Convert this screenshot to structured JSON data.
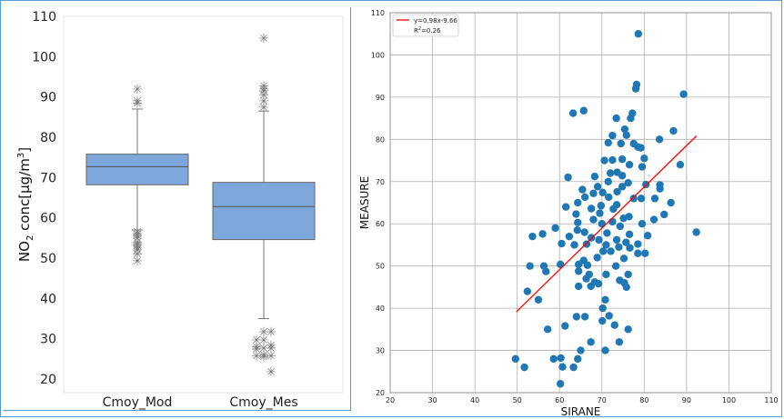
{
  "chart_data": [
    {
      "type": "box",
      "ylabel_main": "NO",
      "ylabel_sub": "2",
      "ylabel_rest": " conc[µg/m",
      "ylabel_sup": "3",
      "ylabel_end": "]",
      "ylim": [
        18,
        111
      ],
      "yticks": [
        20,
        30,
        40,
        50,
        60,
        70,
        80,
        90,
        100,
        110
      ],
      "grid": false,
      "box_color": "#7ea7dc",
      "categories": [
        "Cmoy_Mod",
        "Cmoy_Mes"
      ],
      "boxes": [
        {
          "name": "Cmoy_Mod",
          "whisker_low": 57,
          "q1": 68.2,
          "median": 72.7,
          "q3": 75.8,
          "whisker_high": 87,
          "outliers": [
            92,
            89,
            88.5,
            56.5,
            56,
            55.5,
            55,
            54,
            53.5,
            53,
            52.5,
            52,
            51,
            49.3
          ]
        },
        {
          "name": "Cmoy_Mes",
          "whisker_low": 35,
          "q1": 54.6,
          "median": 62.8,
          "q3": 68.8,
          "whisker_high": 86.5,
          "outliers": [
            104.6,
            92.7,
            92,
            91.5,
            90.5,
            89,
            87.5,
            31.7,
            31.7,
            29.7,
            29.7,
            28.3,
            28,
            27.7,
            27.7,
            27.5,
            26,
            25.8,
            25.8,
            25.5,
            21.8
          ]
        }
      ]
    },
    {
      "type": "scatter",
      "xlabel": "SIRANE",
      "ylabel": "MEASURE",
      "xlim": [
        20,
        110
      ],
      "ylim": [
        20,
        110
      ],
      "xticks": [
        20,
        30,
        40,
        50,
        60,
        70,
        80,
        90,
        100,
        110
      ],
      "yticks": [
        20,
        30,
        40,
        50,
        60,
        70,
        80,
        90,
        100,
        110
      ],
      "grid": true,
      "legend_position": "top-left",
      "fit": {
        "label": "y=0.98x-9.66",
        "r2_label": "R",
        "r2_sup": "2",
        "r2_rest": "=0.26",
        "slope": 0.98,
        "intercept": -9.66,
        "x_range": [
          49.8,
          92.3
        ],
        "color": "#ff0000"
      },
      "point_color": "#1f77b4",
      "points": [
        [
          78.6,
          105
        ],
        [
          78.2,
          93
        ],
        [
          78,
          92
        ],
        [
          89.3,
          90.7
        ],
        [
          63.2,
          86.2
        ],
        [
          65.7,
          86.8
        ],
        [
          77.2,
          86.2
        ],
        [
          76.8,
          85
        ],
        [
          73.4,
          85
        ],
        [
          86.9,
          82
        ],
        [
          75.4,
          82.4
        ],
        [
          75.8,
          81
        ],
        [
          72.5,
          80.9
        ],
        [
          83.6,
          80
        ],
        [
          71.5,
          79.2
        ],
        [
          74.5,
          79
        ],
        [
          77.5,
          79
        ],
        [
          78.5,
          78.2
        ],
        [
          79.2,
          78
        ],
        [
          80,
          75.5
        ],
        [
          70.6,
          75
        ],
        [
          72.5,
          75.1
        ],
        [
          74.8,
          75.3
        ],
        [
          76.5,
          74
        ],
        [
          88.5,
          74
        ],
        [
          79.5,
          73.5
        ],
        [
          72,
          72
        ],
        [
          73.6,
          72.2
        ],
        [
          74.8,
          71.4
        ],
        [
          68.3,
          71.2
        ],
        [
          62,
          71
        ],
        [
          71.5,
          70
        ],
        [
          76.2,
          69.7
        ],
        [
          80.4,
          69.3
        ],
        [
          83.7,
          69.2
        ],
        [
          83.7,
          68.3
        ],
        [
          69,
          68.8
        ],
        [
          74.8,
          68.8
        ],
        [
          65.4,
          68.1
        ],
        [
          68,
          67.2
        ],
        [
          70.2,
          67.4
        ],
        [
          73.6,
          67.6
        ],
        [
          66,
          66.3
        ],
        [
          71.6,
          66.3
        ],
        [
          77.5,
          66
        ],
        [
          79.3,
          66
        ],
        [
          82.5,
          66
        ],
        [
          86.3,
          65
        ],
        [
          64.3,
          65
        ],
        [
          69.8,
          64.3
        ],
        [
          73.5,
          64.5
        ],
        [
          61.5,
          64
        ],
        [
          67.5,
          63.6
        ],
        [
          72.7,
          63.5
        ],
        [
          63.9,
          62.3
        ],
        [
          69.5,
          62.5
        ],
        [
          76.4,
          61.7
        ],
        [
          75.1,
          61.3
        ],
        [
          82.3,
          61
        ],
        [
          84.7,
          62.2
        ],
        [
          68,
          61
        ],
        [
          72.5,
          60.5
        ],
        [
          64.3,
          60.3
        ],
        [
          70,
          60
        ],
        [
          79.5,
          60
        ],
        [
          74.3,
          59.4
        ],
        [
          59,
          59
        ],
        [
          64.2,
          58.5
        ],
        [
          65.9,
          58
        ],
        [
          71.2,
          57.8
        ],
        [
          76.5,
          57.5
        ],
        [
          80.8,
          57.2
        ],
        [
          92.3,
          58
        ],
        [
          56,
          57.6
        ],
        [
          53.6,
          57
        ],
        [
          62.3,
          57
        ],
        [
          67.5,
          56.7
        ],
        [
          69.3,
          56.2
        ],
        [
          73.5,
          56.2
        ],
        [
          75.7,
          55.6
        ],
        [
          78.5,
          55.2
        ],
        [
          60.5,
          55.3
        ],
        [
          63.5,
          55
        ],
        [
          66.4,
          55.2
        ],
        [
          71,
          55
        ],
        [
          74,
          54.5
        ],
        [
          76.6,
          54.3
        ],
        [
          70.3,
          53.5
        ],
        [
          72.1,
          53.5
        ],
        [
          78.5,
          53
        ],
        [
          80.2,
          53
        ],
        [
          68.9,
          52
        ],
        [
          65.7,
          51.3
        ],
        [
          75.2,
          51.8
        ],
        [
          53,
          50
        ],
        [
          56.3,
          50
        ],
        [
          60.2,
          50.4
        ],
        [
          64.5,
          50.4
        ],
        [
          66.6,
          50.2
        ],
        [
          73.3,
          50
        ],
        [
          56.8,
          48.7
        ],
        [
          64.5,
          48.8
        ],
        [
          67,
          48
        ],
        [
          71,
          48
        ],
        [
          76.2,
          48
        ],
        [
          66.3,
          47
        ],
        [
          74.2,
          46.6
        ],
        [
          68.3,
          46.2
        ],
        [
          75.3,
          46
        ],
        [
          69.2,
          45.8
        ],
        [
          64.5,
          45.2
        ],
        [
          67.4,
          45.2
        ],
        [
          75.8,
          45
        ],
        [
          52.4,
          44
        ],
        [
          70.8,
          42
        ],
        [
          55,
          42
        ],
        [
          70.2,
          40
        ],
        [
          64,
          38
        ],
        [
          66,
          38
        ],
        [
          71.7,
          38.2
        ],
        [
          70.1,
          37
        ],
        [
          57.2,
          35
        ],
        [
          61.3,
          35.8
        ],
        [
          73,
          36
        ],
        [
          76.2,
          35
        ],
        [
          67.4,
          32
        ],
        [
          74.1,
          32
        ],
        [
          65,
          30
        ],
        [
          70.8,
          30
        ],
        [
          49.6,
          28
        ],
        [
          58.6,
          28
        ],
        [
          60.3,
          28.2
        ],
        [
          64.3,
          28
        ],
        [
          51.7,
          26
        ],
        [
          60.7,
          26.1
        ],
        [
          63.3,
          26
        ],
        [
          60.2,
          22.1
        ]
      ]
    }
  ]
}
